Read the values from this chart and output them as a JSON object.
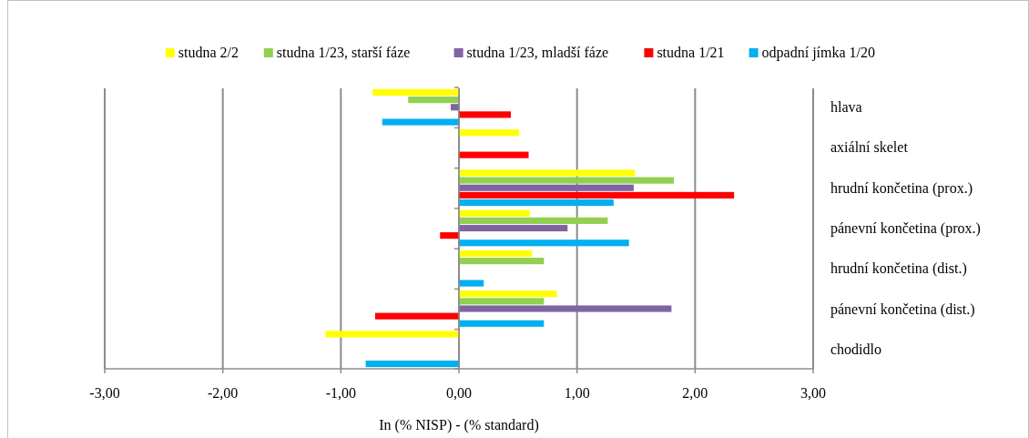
{
  "chart_data": {
    "type": "bar",
    "orientation": "horizontal",
    "xlabel": "In (% NISP) - (% standard)",
    "categories": [
      "hlava",
      "axiální skelet",
      "hrudní končetina (prox.)",
      "pánevní končetina (prox.)",
      "hrudní končetina (dist.)",
      "pánevní končetina (dist.)",
      "chodidlo"
    ],
    "series": [
      {
        "name": "studna 2/2",
        "color": "#ffff00",
        "values": [
          -0.73,
          0.51,
          1.49,
          0.6,
          0.62,
          0.83,
          -1.13
        ]
      },
      {
        "name": "studna 1/23, starší fáze",
        "color": "#92d050",
        "values": [
          -0.43,
          null,
          1.82,
          1.26,
          0.72,
          0.72,
          null
        ]
      },
      {
        "name": "studna 1/23, mladší fáze",
        "color": "#8064a2",
        "values": [
          -0.07,
          null,
          1.48,
          0.92,
          null,
          1.8,
          null
        ]
      },
      {
        "name": "studna 1/21",
        "color": "#ff0000",
        "values": [
          0.44,
          0.59,
          2.33,
          -0.16,
          null,
          -0.71,
          null
        ]
      },
      {
        "name": "odpadní jímka 1/20",
        "color": "#00b0f0",
        "values": [
          -0.65,
          null,
          1.31,
          1.44,
          0.21,
          0.72,
          -0.79
        ]
      }
    ],
    "xlim": [
      -3,
      3
    ],
    "xticks": [
      {
        "value": -3,
        "label": "-3,00"
      },
      {
        "value": -2,
        "label": "-2,00"
      },
      {
        "value": -1,
        "label": "-1,00"
      },
      {
        "value": 0,
        "label": "0,00"
      },
      {
        "value": 1,
        "label": "1,00"
      },
      {
        "value": 2,
        "label": "2,00"
      },
      {
        "value": 3,
        "label": "3,00"
      }
    ],
    "grid": "x",
    "legend": "top"
  }
}
